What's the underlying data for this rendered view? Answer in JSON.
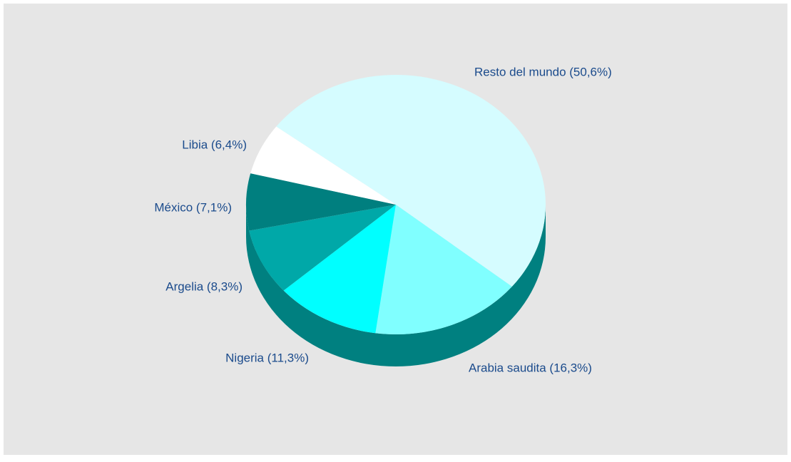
{
  "chart_data": {
    "type": "pie",
    "categories": [
      "Resto del mundo (50,6%)",
      "Arabia saudita (16,3%)",
      "Nigeria (11,3%)",
      "Argelia (8,3%)",
      "México (7,1%)",
      "Libia (6,4%)"
    ],
    "values": [
      50.6,
      16.3,
      11.3,
      8.3,
      7.1,
      6.4
    ],
    "colors": [
      "#d5fcff",
      "#80ffff",
      "#00ffff",
      "#00a8a8",
      "#007f7f",
      "#ffffff"
    ]
  }
}
